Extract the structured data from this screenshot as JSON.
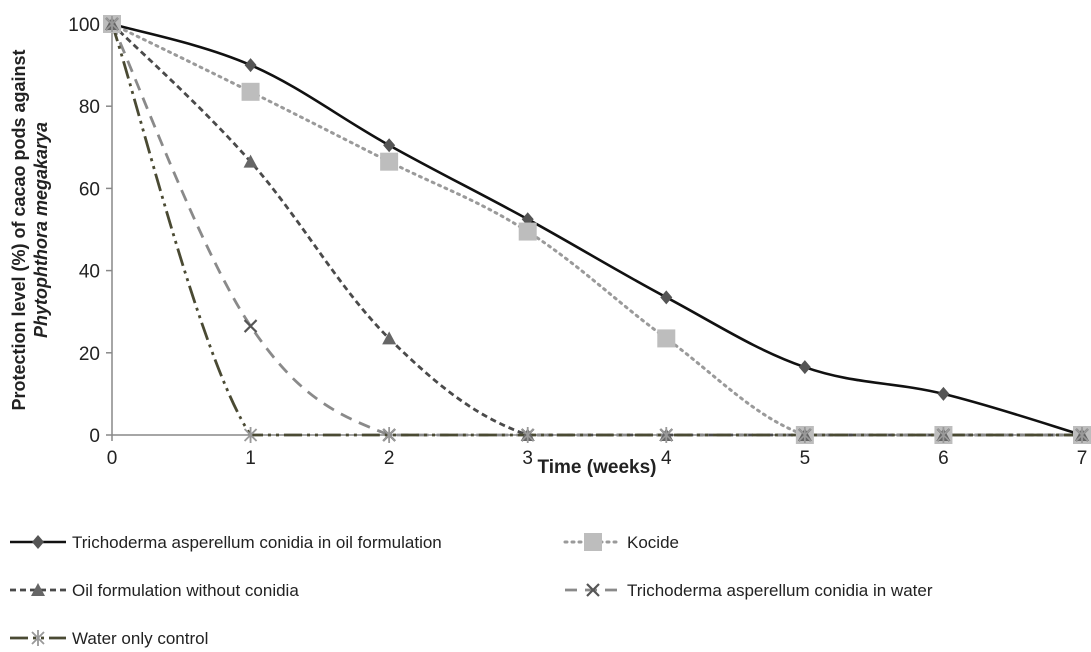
{
  "chart_data": {
    "type": "line",
    "xlabel": "Time (weeks)",
    "ylabel_line1": "Protection level (%) of cacao pods against",
    "ylabel_line2": "Phytophthora megakarya",
    "x": [
      0,
      1,
      2,
      3,
      4,
      5,
      6,
      7
    ],
    "xlim": [
      0,
      7
    ],
    "ylim": [
      0,
      100
    ],
    "yticks": [
      0,
      20,
      40,
      60,
      80,
      100
    ],
    "grid": false,
    "legend_position": "bottom",
    "series": [
      {
        "name": "Trichoderma asperellum conidia in oil formulation",
        "x": [
          0,
          1,
          2,
          3,
          4,
          5,
          6,
          7
        ],
        "values": [
          100,
          90,
          70.5,
          52.5,
          33.5,
          16.5,
          10,
          0
        ],
        "color": "#111111",
        "dash": "solid",
        "marker": "diamond"
      },
      {
        "name": "Kocide",
        "x": [
          0,
          1,
          2,
          3,
          4,
          5,
          6,
          7
        ],
        "values": [
          100,
          83.5,
          66.5,
          49.5,
          23.5,
          0,
          0,
          0
        ],
        "color": "#9a9a9a",
        "dash": "dot",
        "marker": "square"
      },
      {
        "name": "Oil formulation without conidia",
        "x": [
          0,
          1,
          2,
          3,
          4,
          5,
          6,
          7
        ],
        "values": [
          100,
          66.5,
          23.5,
          0,
          0,
          0,
          0,
          0
        ],
        "color": "#4a4a4a",
        "dash": "dash",
        "marker": "triangle"
      },
      {
        "name": "Trichoderma asperellum conidia in water",
        "x": [
          0,
          1,
          2,
          3,
          4,
          5,
          6,
          7
        ],
        "values": [
          100,
          26.5,
          0,
          0,
          0,
          0,
          0,
          0
        ],
        "color": "#8a8a8a",
        "dash": "longdash",
        "marker": "x"
      },
      {
        "name": "Water only control",
        "x": [
          0,
          1,
          2,
          3,
          4,
          5,
          6,
          7
        ],
        "values": [
          100,
          0,
          0,
          0,
          0,
          0,
          0,
          0
        ],
        "color": "#4a4a33",
        "dash": "dashdotdot",
        "marker": "star"
      }
    ]
  }
}
